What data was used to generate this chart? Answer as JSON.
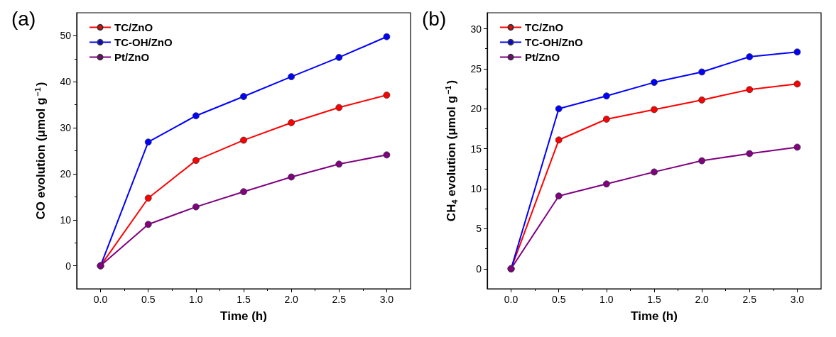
{
  "chart_data": [
    {
      "type": "line",
      "annotations": [
        "(a)"
      ],
      "xlabel": "Time (h)",
      "ylabel": "CO evolution (μmol g$^{−1}$)",
      "x": [
        0,
        0.5,
        1,
        1.5,
        2,
        2.5,
        3
      ],
      "series": [
        {
          "name": "TC/ZnO",
          "color": "#ff0000",
          "values": [
            0,
            14.7,
            22.9,
            27.3,
            31.1,
            34.4,
            37.1
          ]
        },
        {
          "name": "TC-OH/ZnO",
          "color": "#0000ff",
          "values": [
            0,
            26.9,
            32.6,
            36.8,
            41.1,
            45.3,
            49.8
          ]
        },
        {
          "name": "Pt/ZnO",
          "color": "#800080",
          "values": [
            0,
            9.0,
            12.8,
            16.1,
            19.3,
            22.1,
            24.1
          ]
        }
      ],
      "xlim": [
        -0.25,
        3.25
      ],
      "xticks": [
        {
          "value": 0,
          "label": "0.0"
        },
        0.5,
        {
          "value": 1,
          "label": "1.0"
        },
        1.5,
        {
          "value": 2,
          "label": "2.0"
        },
        2.5,
        {
          "value": 3,
          "label": "3.0"
        }
      ],
      "ylim": [
        -5,
        55
      ],
      "yticks": [
        0,
        10,
        20,
        30,
        40,
        50
      ],
      "grid": false,
      "legend": "top left",
      "marker": "circle",
      "line_style": "solid"
    },
    {
      "type": "line",
      "annotations": [
        "(b)"
      ],
      "xlabel": "Time (h)",
      "ylabel": "CH$_{4}$ evolution (μmol g$^{−1}$)",
      "x": [
        0,
        0.5,
        1,
        1.5,
        2,
        2.5,
        3
      ],
      "series": [
        {
          "name": "TC/ZnO",
          "color": "#ff0000",
          "values": [
            0,
            16.1,
            18.7,
            19.9,
            21.1,
            22.4,
            23.1
          ]
        },
        {
          "name": "TC-OH/ZnO",
          "color": "#0000ff",
          "values": [
            0,
            20.0,
            21.6,
            23.3,
            24.6,
            26.5,
            27.1
          ]
        },
        {
          "name": "Pt/ZnO",
          "color": "#800080",
          "values": [
            0,
            9.1,
            10.6,
            12.1,
            13.5,
            14.4,
            15.2
          ]
        }
      ],
      "xlim": [
        -0.25,
        3.25
      ],
      "xticks": [
        {
          "value": 0,
          "label": "0.0"
        },
        0.5,
        {
          "value": 1,
          "label": "1.0"
        },
        1.5,
        {
          "value": 2,
          "label": "2.0"
        },
        2.5,
        {
          "value": 3,
          "label": "3.0"
        }
      ],
      "ylim": [
        -2.5,
        32
      ],
      "yticks": [
        0,
        5,
        10,
        15,
        20,
        25,
        30
      ],
      "grid": false,
      "legend": "top left",
      "marker": "circle",
      "line_style": "solid"
    }
  ]
}
